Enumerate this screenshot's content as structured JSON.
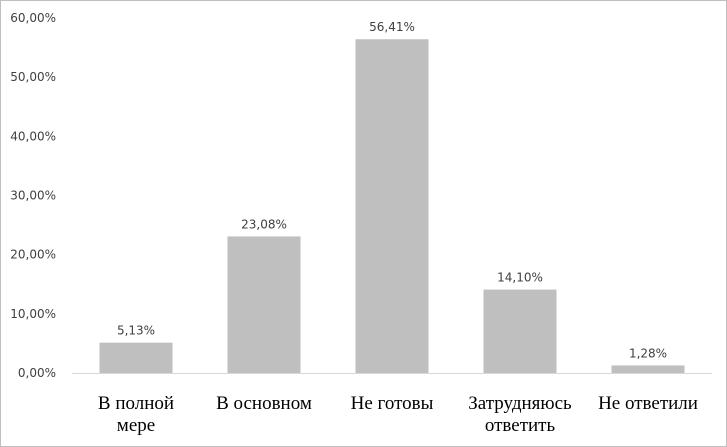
{
  "chart_data": {
    "type": "bar",
    "categories": [
      [
        "В полной",
        "мере"
      ],
      [
        "В основном"
      ],
      [
        "Не готовы"
      ],
      [
        "Затрудняюсь",
        "ответить"
      ],
      [
        "Не ответили"
      ]
    ],
    "values": [
      5.13,
      23.08,
      56.41,
      14.1,
      1.28
    ],
    "data_labels": [
      "5,13%",
      "23,08%",
      "56,41%",
      "14,10%",
      "1,28%"
    ],
    "ylim": [
      0,
      60
    ],
    "yticks": [
      0,
      10,
      20,
      30,
      40,
      50,
      60
    ],
    "ytick_labels": [
      "0,00%",
      "10,00%",
      "20,00%",
      "30,00%",
      "40,00%",
      "50,00%",
      "60,00%"
    ],
    "title": "",
    "xlabel": "",
    "ylabel": "",
    "grid": false,
    "bar_color": "#bfbfbf",
    "axis_color": "#d9d9d9"
  }
}
